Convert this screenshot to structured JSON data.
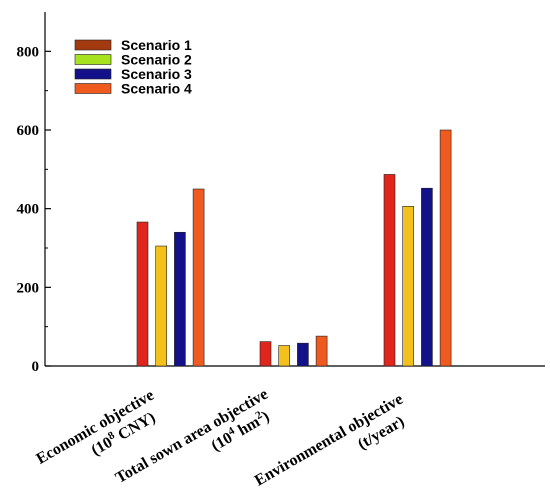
{
  "chart_data": {
    "type": "bar",
    "title": "",
    "xlabel": "",
    "ylabel": "",
    "ylim": [
      0,
      900
    ],
    "yticks": [
      0,
      200,
      400,
      600,
      800
    ],
    "grid": false,
    "legend_position": "top-left",
    "categories": [
      {
        "line1": "Economic objective",
        "line2a": "(10",
        "sup": "8",
        "line2b": " CNY)"
      },
      {
        "line1": "Total sown area objective",
        "line2a": "(10",
        "sup": "4",
        "line2b": " hm",
        "sup2": "2",
        "line2c": ")"
      },
      {
        "line1": "Environmental objective",
        "line2a": "(t/year)"
      }
    ],
    "series": [
      {
        "name": "Scenario 1",
        "bar_color": "#e0261c",
        "legend_color": "#a2390f",
        "values": [
          366,
          62,
          487
        ]
      },
      {
        "name": "Scenario 2",
        "bar_color": "#f3c01c",
        "legend_color": "#a6e21d",
        "values": [
          305,
          52,
          406
        ]
      },
      {
        "name": "Scenario 3",
        "bar_color": "#12118a",
        "legend_color": "#12118a",
        "values": [
          340,
          58,
          452
        ]
      },
      {
        "name": "Scenario 4",
        "bar_color": "#ef5a1f",
        "legend_color": "#ef5a1f",
        "values": [
          450,
          76,
          600
        ]
      }
    ]
  }
}
